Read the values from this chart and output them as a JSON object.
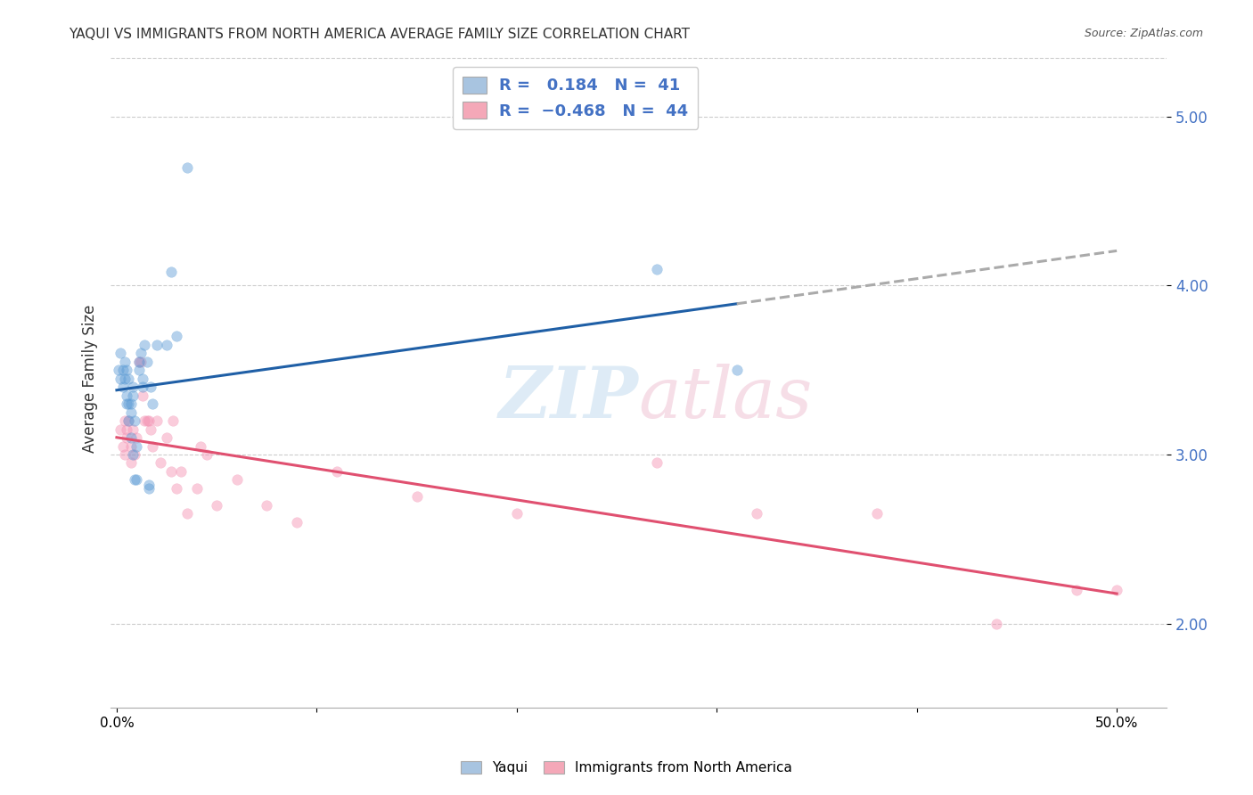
{
  "title": "YAQUI VS IMMIGRANTS FROM NORTH AMERICA AVERAGE FAMILY SIZE CORRELATION CHART",
  "source": "Source: ZipAtlas.com",
  "ylabel": "Average Family Size",
  "yticks": [
    2.0,
    3.0,
    4.0,
    5.0
  ],
  "ymin": 1.5,
  "ymax": 5.4,
  "xmin": -0.003,
  "xmax": 0.525,
  "legend_color1": "#a8c4e0",
  "legend_color2": "#f4a8b8",
  "yaqui_x": [
    0.001,
    0.002,
    0.002,
    0.003,
    0.003,
    0.004,
    0.004,
    0.005,
    0.005,
    0.005,
    0.006,
    0.006,
    0.006,
    0.007,
    0.007,
    0.007,
    0.008,
    0.008,
    0.008,
    0.009,
    0.009,
    0.01,
    0.01,
    0.011,
    0.011,
    0.012,
    0.013,
    0.013,
    0.014,
    0.015,
    0.016,
    0.016,
    0.017,
    0.018,
    0.02,
    0.025,
    0.027,
    0.03,
    0.035,
    0.27,
    0.31
  ],
  "yaqui_y": [
    3.5,
    3.6,
    3.45,
    3.5,
    3.4,
    3.55,
    3.45,
    3.5,
    3.35,
    3.3,
    3.45,
    3.3,
    3.2,
    3.3,
    3.25,
    3.1,
    3.4,
    3.35,
    3.0,
    3.2,
    2.85,
    3.05,
    2.85,
    3.55,
    3.5,
    3.6,
    3.4,
    3.45,
    3.65,
    3.55,
    2.8,
    2.82,
    3.4,
    3.3,
    3.65,
    3.65,
    4.08,
    3.7,
    4.7,
    4.1,
    3.5
  ],
  "immigrant_x": [
    0.002,
    0.003,
    0.004,
    0.004,
    0.005,
    0.005,
    0.006,
    0.007,
    0.007,
    0.008,
    0.009,
    0.01,
    0.011,
    0.012,
    0.013,
    0.014,
    0.015,
    0.016,
    0.017,
    0.018,
    0.02,
    0.022,
    0.025,
    0.027,
    0.028,
    0.03,
    0.032,
    0.035,
    0.04,
    0.042,
    0.045,
    0.05,
    0.06,
    0.075,
    0.09,
    0.11,
    0.15,
    0.2,
    0.27,
    0.32,
    0.38,
    0.44,
    0.48,
    0.5
  ],
  "immigrant_y": [
    3.15,
    3.05,
    3.2,
    3.0,
    3.15,
    3.1,
    3.2,
    3.05,
    2.95,
    3.15,
    3.0,
    3.1,
    3.55,
    3.55,
    3.35,
    3.2,
    3.2,
    3.2,
    3.15,
    3.05,
    3.2,
    2.95,
    3.1,
    2.9,
    3.2,
    2.8,
    2.9,
    2.65,
    2.8,
    3.05,
    3.0,
    2.7,
    2.85,
    2.7,
    2.6,
    2.9,
    2.75,
    2.65,
    2.95,
    2.65,
    2.65,
    2.0,
    2.2,
    2.2
  ],
  "yaqui_color": "#5b9bd5",
  "immigrant_color": "#f48fb1",
  "trendline_yaqui_color": "#1f5fa6",
  "trendline_immigrant_color": "#e05070",
  "marker_size": 70,
  "marker_alpha": 0.45,
  "line_width": 2.2,
  "trendline_yaqui_x_start": 0.0,
  "trendline_yaqui_x_solid_end": 0.31,
  "trendline_yaqui_x_dash_end": 0.5,
  "trendline_immigrant_x_start": 0.0,
  "trendline_immigrant_x_end": 0.5
}
